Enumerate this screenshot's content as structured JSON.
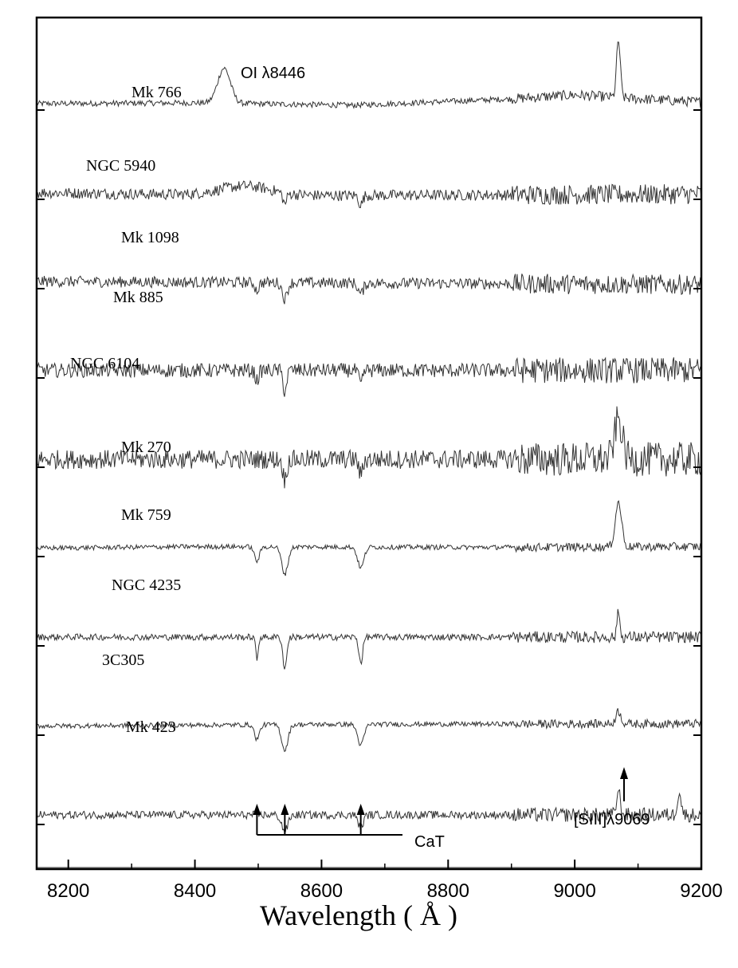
{
  "chart_data": {
    "type": "line",
    "title": "",
    "xlabel": "Wavelength ( Å )",
    "ylabel": "",
    "xlim": [
      8150,
      9200
    ],
    "x_ticks": [
      "8200",
      "8400",
      "8600",
      "8800",
      "9000",
      "9200"
    ],
    "x_tick_values": [
      8200,
      8400,
      8600,
      8800,
      9000,
      9200
    ],
    "grid": false,
    "legend": "none",
    "line_color": "#333333",
    "series": [
      {
        "name": "Mk 766",
        "features": [
          {
            "type": "emission",
            "x": 8446,
            "depth": 2.2,
            "width": 10
          },
          {
            "type": "emission",
            "x": 9069,
            "depth": 3.6,
            "width": 3
          },
          {
            "type": "absorption",
            "x": 9069,
            "depth": 0
          }
        ],
        "slope": [
          [
            8150,
            0.0
          ],
          [
            8400,
            0.05
          ],
          [
            8650,
            -0.1
          ],
          [
            8900,
            0.3
          ],
          [
            9000,
            0.55
          ],
          [
            9100,
            0.3
          ],
          [
            9200,
            0.1
          ]
        ],
        "noise": 0.18
      },
      {
        "name": "NGC 5940",
        "features": [
          {
            "type": "emission",
            "x": 8480,
            "depth": 0.6,
            "width": 40
          },
          {
            "type": "absorption",
            "x": 8542,
            "depth": 0.7,
            "width": 3
          },
          {
            "type": "absorption",
            "x": 8662,
            "depth": 0.6,
            "width": 3
          }
        ],
        "slope": [
          [
            8150,
            0.0
          ],
          [
            8500,
            -0.2
          ],
          [
            9200,
            -0.1
          ]
        ],
        "noise": 0.35
      },
      {
        "name": "Mk 1098",
        "features": [
          {
            "type": "absorption",
            "x": 8498,
            "depth": 0.5,
            "width": 3
          },
          {
            "type": "absorption",
            "x": 8542,
            "depth": 1.0,
            "width": 4
          },
          {
            "type": "absorption",
            "x": 8662,
            "depth": 0.7,
            "width": 4
          }
        ],
        "slope": [
          [
            8150,
            0.0
          ],
          [
            9200,
            -0.2
          ]
        ],
        "noise": 0.35
      },
      {
        "name": "Mk 885",
        "features": [
          {
            "type": "absorption",
            "x": 8498,
            "depth": 0.6,
            "width": 3
          },
          {
            "type": "absorption",
            "x": 8542,
            "depth": 1.3,
            "width": 3
          },
          {
            "type": "absorption",
            "x": 8662,
            "depth": 0.9,
            "width": 3
          }
        ],
        "slope": [
          [
            8150,
            0.0
          ],
          [
            9200,
            0.0
          ]
        ],
        "noise": 0.45
      },
      {
        "name": "NGC 6104",
        "features": [
          {
            "type": "absorption",
            "x": 8542,
            "depth": 1.3,
            "width": 3
          },
          {
            "type": "absorption",
            "x": 8662,
            "depth": 1.0,
            "width": 3
          },
          {
            "type": "emission",
            "x": 9069,
            "depth": 2.5,
            "width": 6
          }
        ],
        "slope": [
          [
            8150,
            0.0
          ],
          [
            9200,
            0.0
          ]
        ],
        "noise": 0.6
      },
      {
        "name": "Mk 270",
        "features": [
          {
            "type": "absorption",
            "x": 8498,
            "depth": 0.9,
            "width": 4
          },
          {
            "type": "absorption",
            "x": 8542,
            "depth": 1.7,
            "width": 5
          },
          {
            "type": "absorption",
            "x": 8662,
            "depth": 1.3,
            "width": 5
          },
          {
            "type": "emission",
            "x": 9069,
            "depth": 2.8,
            "width": 5
          }
        ],
        "slope": [
          [
            8150,
            0.0
          ],
          [
            8400,
            0.1
          ],
          [
            8900,
            0.05
          ],
          [
            9200,
            0.1
          ]
        ],
        "noise": 0.15
      },
      {
        "name": "Mk 759",
        "features": [
          {
            "type": "absorption",
            "x": 8498,
            "depth": 1.4,
            "width": 2
          },
          {
            "type": "absorption",
            "x": 8542,
            "depth": 2.0,
            "width": 3
          },
          {
            "type": "absorption",
            "x": 8662,
            "depth": 1.6,
            "width": 3
          },
          {
            "type": "emission",
            "x": 9069,
            "depth": 1.8,
            "width": 2
          }
        ],
        "slope": [
          [
            8150,
            0.0
          ],
          [
            9200,
            0.0
          ]
        ],
        "noise": 0.2
      },
      {
        "name": "NGC 4235",
        "features": [
          {
            "type": "absorption",
            "x": 8498,
            "depth": 0.9,
            "width": 4
          },
          {
            "type": "absorption",
            "x": 8542,
            "depth": 1.6,
            "width": 5
          },
          {
            "type": "absorption",
            "x": 8662,
            "depth": 1.3,
            "width": 5
          },
          {
            "type": "emission",
            "x": 9069,
            "depth": 0.8,
            "width": 4
          }
        ],
        "slope": [
          [
            8150,
            0.0
          ],
          [
            8600,
            0.1
          ],
          [
            9200,
            0.15
          ]
        ],
        "noise": 0.15
      },
      {
        "name": "3C305",
        "features": [
          {
            "type": "absorption",
            "x": 8542,
            "depth": 1.0,
            "width": 5
          },
          {
            "type": "absorption",
            "x": 8662,
            "depth": 0.8,
            "width": 4
          },
          {
            "type": "emission",
            "x": 9069,
            "depth": 1.5,
            "width": 3
          },
          {
            "type": "emission",
            "x": 9165,
            "depth": 1.5,
            "width": 3
          }
        ],
        "slope": [
          [
            8150,
            0.0
          ],
          [
            9200,
            0.0
          ]
        ],
        "noise": 0.25
      },
      {
        "name": "Mk 423",
        "features": [
          {
            "type": "absorption",
            "x": 8498,
            "depth": 0.7,
            "width": 4
          },
          {
            "type": "absorption",
            "x": 8542,
            "depth": 1.5,
            "width": 4
          },
          {
            "type": "absorption",
            "x": 8662,
            "depth": 0.9,
            "width": 4
          },
          {
            "type": "emission",
            "x": 9069,
            "depth": 1.0,
            "width": 3
          }
        ],
        "slope": [
          [
            8150,
            0.0
          ],
          [
            8400,
            -0.1
          ],
          [
            8800,
            0.2
          ],
          [
            9000,
            0.0
          ],
          [
            9200,
            -0.2
          ]
        ],
        "noise": 0.25
      }
    ],
    "annotations": {
      "oi_label": "OI λ8446",
      "cat_label": "CaT",
      "cat_wavelengths": [
        8498,
        8542,
        8662
      ],
      "siii_label": "[SIII]λ9069",
      "siii_wavelength": 9069
    }
  }
}
